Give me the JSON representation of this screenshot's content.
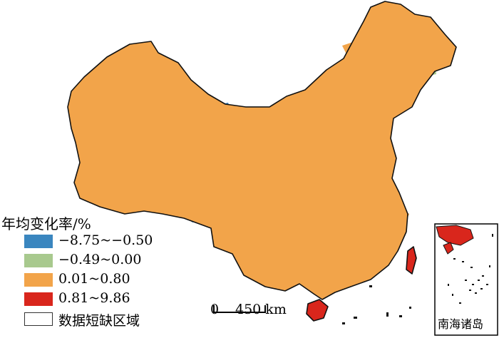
{
  "legend": {
    "title": "年均变化率/%",
    "classes": [
      {
        "label": "−8.75~−0.50",
        "color": "#3a86bf"
      },
      {
        "label": "−0.49~0.00",
        "color": "#a8c98e"
      },
      {
        "label": "0.01~0.80",
        "color": "#f2a44a"
      },
      {
        "label": "0.81~9.86",
        "color": "#d9261c"
      }
    ],
    "no_data_label": "数据短缺区域"
  },
  "scale_bar": {
    "start": "0",
    "end": "450 km"
  },
  "inset": {
    "label": "南海诸岛"
  },
  "colors": {
    "boundary": "#111111",
    "background": "#ffffff"
  }
}
